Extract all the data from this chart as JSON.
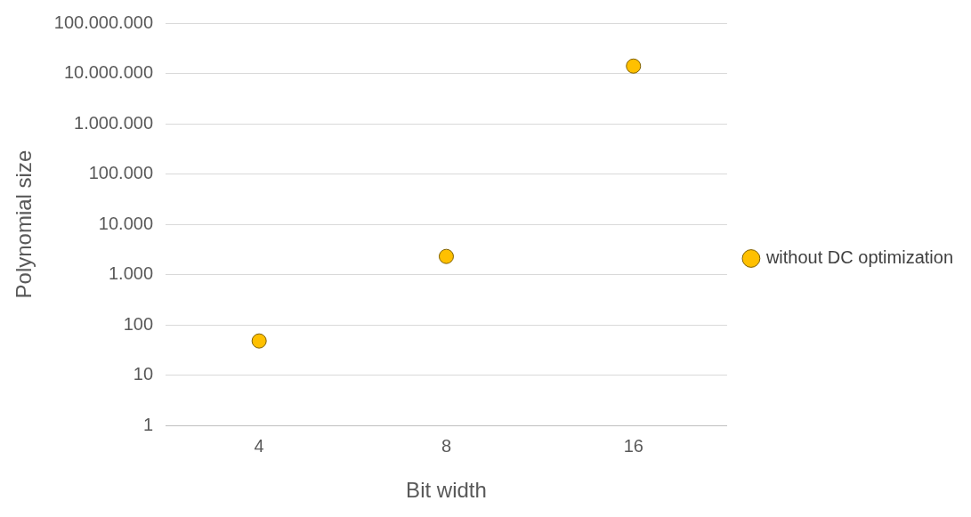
{
  "chart_data": {
    "type": "scatter",
    "xlabel": "Bit width",
    "ylabel": "Polynomial size",
    "categories": [
      "4",
      "8",
      "16"
    ],
    "series": [
      {
        "name": "without DC optimization",
        "color": "#ffc000",
        "values": [
          48,
          2300,
          14000000
        ]
      }
    ],
    "log": "y",
    "ylim": [
      1,
      100000000
    ],
    "yticks": [
      1,
      10,
      100,
      {
        "value": 1000,
        "label": "1.000"
      },
      {
        "value": 10000,
        "label": "10.000"
      },
      {
        "value": 100000,
        "label": "100.000"
      },
      {
        "value": 1000000,
        "label": "1.000.000"
      },
      {
        "value": 10000000,
        "label": "10.000.000"
      },
      {
        "value": 100000000,
        "label": "100.000.000"
      }
    ],
    "grid": "y",
    "legend": "right",
    "marker": "circle"
  }
}
